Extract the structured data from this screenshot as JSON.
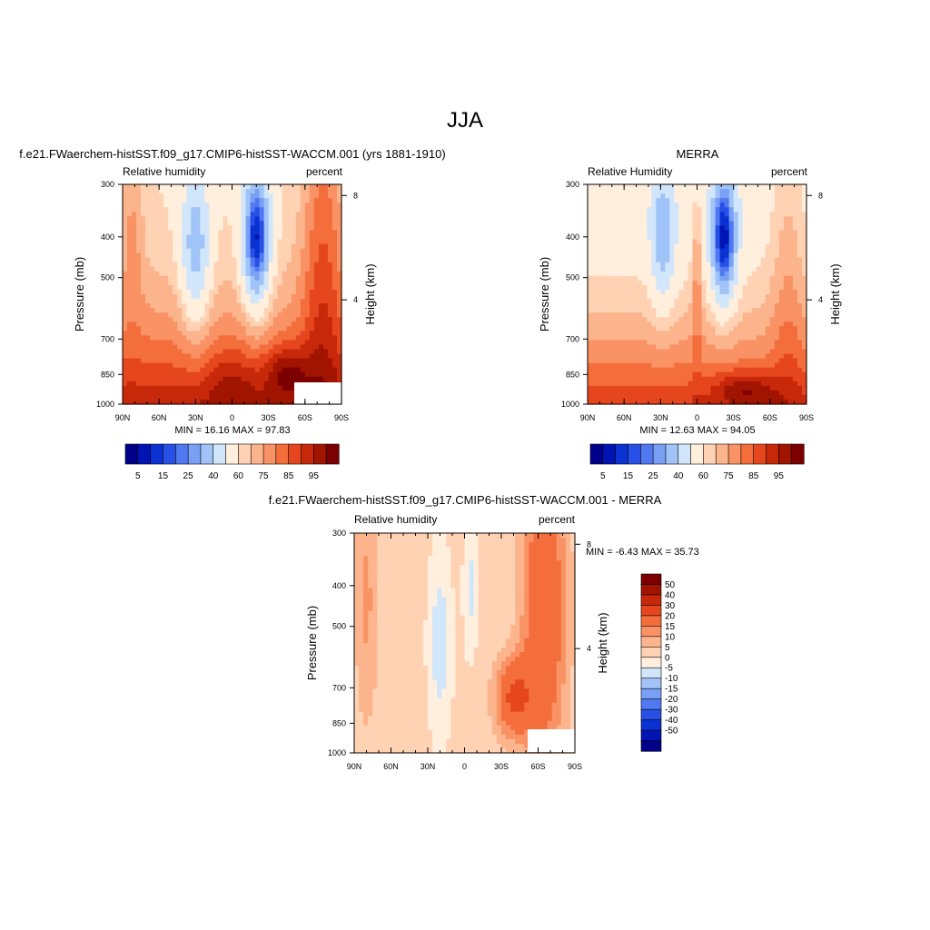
{
  "page_title": "JJA",
  "colors": {
    "humidity_scale": [
      "#00008b",
      "#0014b4",
      "#0a32d2",
      "#2850e6",
      "#5078f0",
      "#78a0f5",
      "#a0c3f8",
      "#d2e6fb",
      "#ffefdc",
      "#ffd2b4",
      "#fcb48c",
      "#f99264",
      "#f46e3c",
      "#e6461e",
      "#c8280a",
      "#a01400",
      "#7d0000"
    ],
    "diff_scale": [
      "#00008b",
      "#0014b4",
      "#0a32d2",
      "#2850e6",
      "#5078f0",
      "#78a0f5",
      "#a0c3f8",
      "#d2e6fb",
      "#ffefdc",
      "#ffd2b4",
      "#fcb48c",
      "#f99264",
      "#f46e3c",
      "#e6461e",
      "#c8280a",
      "#a01400",
      "#7d0000"
    ]
  },
  "chart_data": [
    {
      "type": "heatmap",
      "title": "f.e21.FWaerchem-histSST.f09_g17.CMIP6-histSST-WACCM.001 (yrs 1881-1910)",
      "left_string": "Relative humidity",
      "right_string": "percent",
      "ylabel": "Pressure (mb)",
      "ylabel_right": "Height (km)",
      "x_ticks": [
        "90N",
        "60N",
        "30N",
        "0",
        "30S",
        "60S",
        "90S"
      ],
      "y_ticks": [
        "300",
        "400",
        "500",
        "700",
        "850",
        "1000"
      ],
      "y_right_ticks": [
        "8",
        "4"
      ],
      "ylim": [
        1000,
        300
      ],
      "stats": "MIN =  16.16  MAX =  97.83",
      "colorbar_labels": [
        "5",
        "15",
        "25",
        "40",
        "60",
        "75",
        "85",
        "95"
      ],
      "fields": [
        {
          "lat": 12,
          "p": 420,
          "w": 13,
          "h": 2.2,
          "a": -40
        },
        {
          "lat": -38,
          "p": 330,
          "w": 16,
          "h": 3.0,
          "a": 22
        },
        {
          "lat": 60,
          "p": 360,
          "w": 14,
          "h": 3.0,
          "a": 12
        },
        {
          "lat": -70,
          "p": 880,
          "w": 20,
          "h": 1.4,
          "a": 22
        }
      ]
    },
    {
      "type": "heatmap",
      "title": "MERRA",
      "left_string": "Relative Humidity",
      "right_string": "percent",
      "ylabel": "Pressure (mb)",
      "ylabel_right": "Height (km)",
      "x_ticks": [
        "90N",
        "60N",
        "30N",
        "0",
        "30S",
        "60S",
        "90S"
      ],
      "y_ticks": [
        "300",
        "400",
        "500",
        "700",
        "850",
        "1000"
      ],
      "y_right_ticks": [
        "8",
        "4"
      ],
      "ylim": [
        1000,
        300
      ],
      "stats": "MIN =  12.63  MAX =  94.05",
      "colorbar_labels": [
        "5",
        "15",
        "25",
        "40",
        "60",
        "75",
        "85",
        "95"
      ]
    },
    {
      "type": "heatmap",
      "title": "f.e21.FWaerchem-histSST.f09_g17.CMIP6-histSST-WACCM.001 - MERRA",
      "left_string": "Relative humidity",
      "right_string": "percent",
      "ylabel": "Pressure (mb)",
      "ylabel_right": "Height (km)",
      "x_ticks": [
        "90N",
        "60N",
        "30N",
        "0",
        "30S",
        "60S",
        "90S"
      ],
      "y_ticks": [
        "300",
        "400",
        "500",
        "700",
        "850",
        "1000"
      ],
      "y_right_ticks": [
        "8",
        "4"
      ],
      "ylim": [
        1000,
        300
      ],
      "stats": "MIN =  -6.43  MAX =  35.73",
      "colorbar_labels": [
        "50",
        "40",
        "30",
        "20",
        "15",
        "10",
        "5",
        "0",
        "-5",
        "-10",
        "-15",
        "-20",
        "-30",
        "-40",
        "-50"
      ]
    }
  ]
}
